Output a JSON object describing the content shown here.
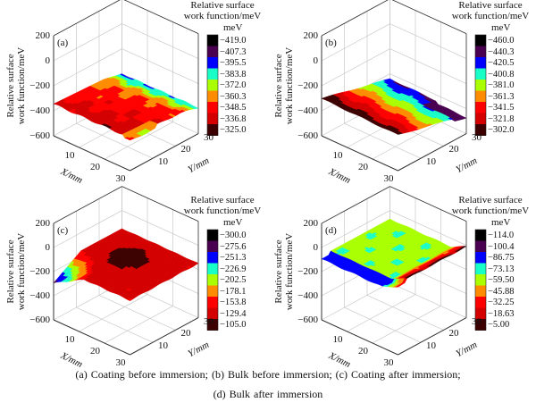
{
  "chart_data": [
    {
      "type": "surface3d",
      "panel_label": "(a)",
      "title": "Coating before immersion",
      "zlabel": "Relative surface work function/meV",
      "xlabel": "X/mm",
      "ylabel": "Y/mm",
      "z_ticks": [
        "200",
        "0",
        "−200",
        "−400",
        "−600"
      ],
      "x_ticks": [
        "10",
        "20",
        "30"
      ],
      "y_ticks": [
        "10",
        "20",
        "30"
      ],
      "zlim": [
        -600,
        200
      ],
      "xlim": [
        0,
        30
      ],
      "ylim": [
        0,
        30
      ],
      "colorbar": {
        "title": "Relative surface work function/meV",
        "unit": "meV",
        "levels": [
          "−419.0",
          "−407.3",
          "−395.5",
          "−383.8",
          "−372.0",
          "−360.3",
          "−348.5",
          "−336.8",
          "−325.0"
        ]
      },
      "surface_z_range": [
        -419,
        -325
      ],
      "description": "Nearly flat surface around -360 meV; red/dark-red (higher) near X=0 side, orange mid, green/cyan toward far Y edge"
    },
    {
      "type": "surface3d",
      "panel_label": "(b)",
      "title": "Bulk before immersion",
      "zlabel": "Relative surface work function/meV",
      "xlabel": "X/mm",
      "ylabel": "Y/mm",
      "z_ticks": [
        "200",
        "0",
        "−200",
        "−400",
        "−600"
      ],
      "x_ticks": [
        "10",
        "20",
        "30"
      ],
      "y_ticks": [
        "10",
        "20",
        "30"
      ],
      "zlim": [
        -600,
        200
      ],
      "xlim": [
        0,
        30
      ],
      "ylim": [
        0,
        30
      ],
      "colorbar": {
        "title": "Relative surface work function/meV",
        "unit": "meV",
        "levels": [
          "−460.0",
          "−440.3",
          "−420.5",
          "−400.8",
          "−381.0",
          "−361.3",
          "−341.5",
          "−321.8",
          "−302.0"
        ]
      },
      "surface_z_range": [
        -460,
        -302
      ],
      "description": "Tilted plane: dark red (-302) at low Y corner grading through red, orange, green, cyan to blue/purple (-450) at high Y"
    },
    {
      "type": "surface3d",
      "panel_label": "(c)",
      "title": "Coating after immersion",
      "zlabel": "Relative surface work function/meV",
      "xlabel": "X/mm",
      "ylabel": "Y/mm",
      "z_ticks": [
        "200",
        "0",
        "−200",
        "−400",
        "−600"
      ],
      "x_ticks": [
        "10",
        "20",
        "30"
      ],
      "y_ticks": [
        "10",
        "20",
        "30"
      ],
      "zlim": [
        -600,
        200
      ],
      "xlim": [
        0,
        30
      ],
      "ylim": [
        0,
        30
      ],
      "colorbar": {
        "title": "Relative surface work function/meV",
        "unit": "meV",
        "levels": [
          "−300.0",
          "−275.6",
          "−251.3",
          "−226.9",
          "−202.5",
          "−178.1",
          "−153.8",
          "−129.4",
          "−105.0"
        ]
      },
      "surface_z_range": [
        -300,
        -105
      ],
      "description": "Mostly red plateau (~-150) with dark-red dome (~-105) in centre; corner at X=0,Y=0 dips to blue/purple (~-290)"
    },
    {
      "type": "surface3d",
      "panel_label": "(d)",
      "title": "Bulk after immersion",
      "zlabel": "Relative surface work function/meV",
      "xlabel": "X/mm",
      "ylabel": "Y/mm",
      "z_ticks": [
        "200",
        "0",
        "−200",
        "−400",
        "−600"
      ],
      "x_ticks": [
        "10",
        "20",
        "30"
      ],
      "y_ticks": [
        "10",
        "20",
        "30"
      ],
      "zlim": [
        -600,
        200
      ],
      "xlim": [
        0,
        30
      ],
      "ylim": [
        0,
        30
      ],
      "colorbar": {
        "title": "Relative surface work function/meV",
        "unit": "meV",
        "levels": [
          "−114.0",
          "−100.4",
          "−86.75",
          "−73.13",
          "−59.50",
          "−45.88",
          "−32.25",
          "−18.63",
          "−5.00"
        ]
      },
      "surface_z_range": [
        -114,
        -5
      ],
      "description": "Flat surface mostly cyan/green (~-70); blue/purple along X edge; red/dark-red ridge (~-10) along X=30 edge"
    }
  ],
  "colormap": [
    "#000000",
    "#4a0050",
    "#0000ff",
    "#19ffc8",
    "#aaff00",
    "#ff8c00",
    "#ff0000",
    "#d40000",
    "#3c0000"
  ],
  "caption": {
    "line1": "(a)  Coating  before  immersion;  (b)  Bulk  before  immersion;  (c)  Coating  after  immersion;",
    "line2": "(d)  Bulk  after   immersion"
  }
}
